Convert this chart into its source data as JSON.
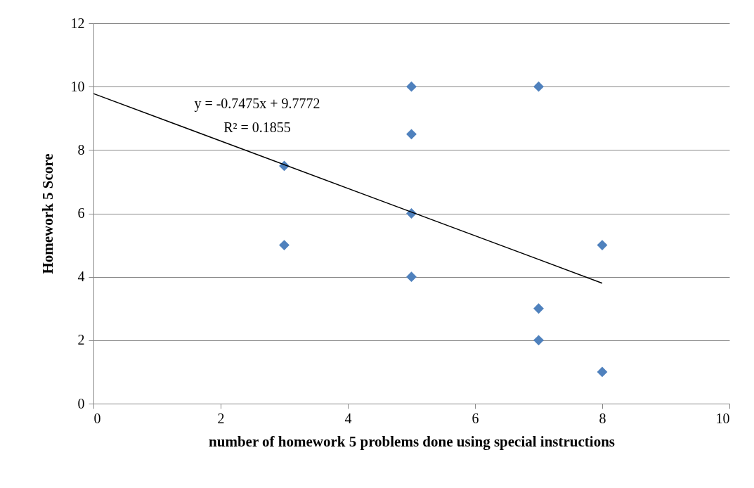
{
  "chart_data": {
    "type": "scatter",
    "xlabel": "number of homework 5 problems done using special instructions",
    "ylabel": "Homework 5 Score",
    "xlim": [
      0,
      10
    ],
    "xticks": [
      0,
      2,
      4,
      6,
      8,
      10
    ],
    "ylim": [
      0,
      12
    ],
    "yticks": [
      0,
      2,
      4,
      6,
      8,
      10,
      12
    ],
    "grid": "y",
    "marker": "diamond",
    "series": [
      {
        "color": "#4f81bd",
        "x": [
          3,
          3,
          5,
          5,
          5,
          5,
          7,
          7,
          7,
          8,
          8
        ],
        "values": [
          7.5,
          5,
          10,
          8.5,
          6,
          4,
          10,
          3,
          2,
          5,
          1
        ]
      },
      {
        "type": "line",
        "color": "#000000",
        "line_style": "solid",
        "marker": "none",
        "x": [
          0,
          8
        ],
        "values": [
          9.78,
          3.8
        ]
      }
    ],
    "annotations": [
      "y = -0.7475x + 9.7772",
      "R² = 0.1855"
    ]
  }
}
